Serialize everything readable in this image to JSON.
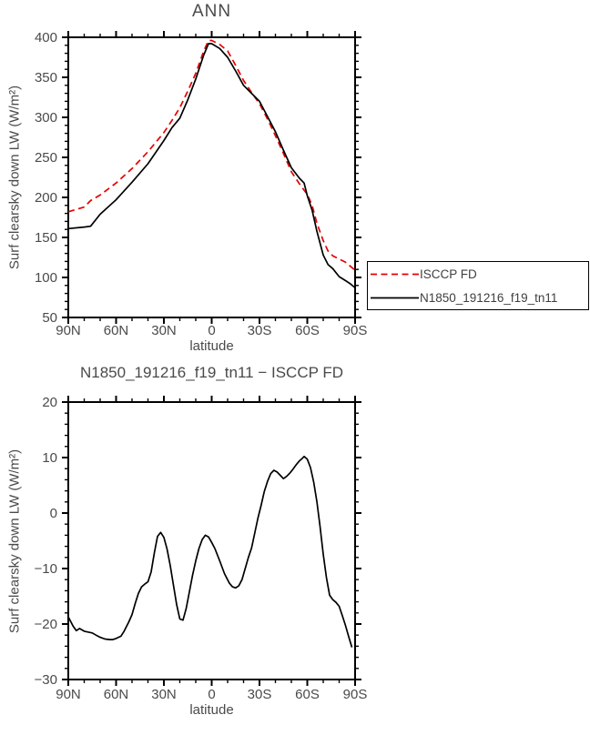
{
  "page": {
    "background": "#ffffff",
    "text_color": "#4a4a4a",
    "axis_color": "#000000"
  },
  "chart_data": [
    {
      "type": "line",
      "title": "ANN",
      "ylabel": "Surf clearsky down LW (W/m²)",
      "xlabel": "latitude",
      "xlim": [
        90,
        -90
      ],
      "ylim": [
        50,
        400
      ],
      "grid": false,
      "xtick_values": [
        90,
        60,
        30,
        0,
        -30,
        -60,
        -90
      ],
      "xtick_labels": [
        "90N",
        "60N",
        "30N",
        "0",
        "30S",
        "60S",
        "90S"
      ],
      "ytick_values": [
        400,
        350,
        300,
        250,
        200,
        150,
        100,
        50
      ],
      "ytick_labels": [
        "400",
        "350",
        "300",
        "250",
        "200",
        "150",
        "100",
        "50"
      ],
      "x_minor_step": 10,
      "y_minor_step": 10,
      "x": [
        90,
        80,
        76,
        70,
        60,
        50,
        40,
        30,
        25,
        20,
        15,
        10,
        5,
        2,
        0,
        -5,
        -10,
        -15,
        -20,
        -25,
        -30,
        -35,
        -40,
        -45,
        -50,
        -55,
        -58,
        -60,
        -63,
        -66,
        -70,
        -73,
        -76,
        -80,
        -84,
        -87,
        -90
      ],
      "series": [
        {
          "name": "ISCCP FD",
          "color": "#e60000",
          "dashed": true,
          "values": [
            182,
            188,
            196,
            203,
            218,
            236,
            257,
            281,
            296,
            312,
            333,
            355,
            383,
            396,
            396,
            391,
            383,
            365,
            346,
            331,
            317,
            298,
            277,
            255,
            232,
            217,
            209,
            204,
            190,
            168,
            146,
            133,
            127,
            123,
            119,
            114,
            109
          ]
        },
        {
          "name": "N1850_191216_f19_tn11",
          "color": "#000000",
          "dashed": false,
          "values": [
            161,
            163,
            164,
            179,
            197,
            219,
            242,
            271,
            287,
            299,
            322,
            348,
            378,
            392,
            392,
            386,
            375,
            358,
            340,
            330,
            320,
            301,
            282,
            259,
            237,
            224,
            218,
            202,
            184,
            158,
            128,
            116,
            111,
            101,
            96,
            92,
            87
          ]
        }
      ],
      "legend": {
        "position": "right-middle",
        "entries": [
          "ISCCP FD",
          "N1850_191216_f19_tn11"
        ]
      }
    },
    {
      "type": "line",
      "title": "N1850_191216_f19_tn11 − ISCCP FD",
      "ylabel": "Surf clearsky down LW (W/m²)",
      "xlabel": "latitude",
      "xlim": [
        90,
        -90
      ],
      "ylim": [
        -30,
        20
      ],
      "grid": false,
      "xtick_values": [
        90,
        60,
        30,
        0,
        -30,
        -60,
        -90
      ],
      "xtick_labels": [
        "90N",
        "60N",
        "30N",
        "0",
        "30S",
        "60S",
        "90S"
      ],
      "ytick_values": [
        20,
        10,
        0,
        -10,
        -20,
        -30
      ],
      "ytick_labels": [
        "20",
        "10",
        "0",
        "−10",
        "−20",
        "−30"
      ],
      "x_minor_step": 10,
      "y_minor_step": 2,
      "x": [
        90,
        87,
        85,
        83,
        80,
        77,
        75,
        72,
        70,
        67,
        64,
        62,
        60,
        57,
        55,
        52,
        50,
        48,
        46,
        44,
        42,
        40,
        38,
        36,
        34,
        32,
        30,
        28,
        26,
        24,
        22,
        20,
        18,
        16,
        14,
        12,
        10,
        8,
        6,
        4,
        2,
        0,
        -2,
        -5,
        -8,
        -11,
        -13,
        -15,
        -17,
        -19,
        -21,
        -23,
        -25,
        -27,
        -29,
        -31,
        -33,
        -35,
        -37,
        -39,
        -41,
        -43,
        -45,
        -47,
        -49,
        -51,
        -53,
        -55,
        -57,
        -58,
        -60,
        -62,
        -64,
        -66,
        -68,
        -70,
        -72,
        -74,
        -76,
        -78,
        -80,
        -82,
        -84,
        -86,
        -88
      ],
      "series": [
        {
          "name": "N1850_191216_f19_tn11 − ISCCP FD",
          "color": "#000000",
          "dashed": false,
          "values": [
            -18.7,
            -20.4,
            -21.2,
            -20.8,
            -21.3,
            -21.5,
            -21.6,
            -22.1,
            -22.4,
            -22.7,
            -22.8,
            -22.8,
            -22.6,
            -22.2,
            -21.3,
            -19.6,
            -18.3,
            -16.3,
            -14.5,
            -13.3,
            -12.8,
            -12.4,
            -10.6,
            -7.2,
            -4.2,
            -3.5,
            -4.4,
            -6.5,
            -9.5,
            -13.0,
            -16.5,
            -19.1,
            -19.3,
            -17.2,
            -14.2,
            -11.2,
            -8.6,
            -6.4,
            -4.8,
            -4.0,
            -4.3,
            -5.3,
            -6.4,
            -8.6,
            -10.9,
            -12.6,
            -13.3,
            -13.5,
            -13.1,
            -12.0,
            -10.0,
            -8.0,
            -6.3,
            -3.6,
            -0.9,
            1.4,
            3.9,
            5.7,
            7.1,
            7.7,
            7.4,
            6.8,
            6.2,
            6.6,
            7.2,
            7.9,
            8.7,
            9.4,
            9.9,
            10.2,
            9.7,
            8.2,
            5.6,
            2.1,
            -2.4,
            -7.4,
            -11.6,
            -14.8,
            -15.6,
            -16.1,
            -16.8,
            -18.5,
            -20.3,
            -22.3,
            -24.2
          ]
        }
      ],
      "legend": null
    }
  ]
}
